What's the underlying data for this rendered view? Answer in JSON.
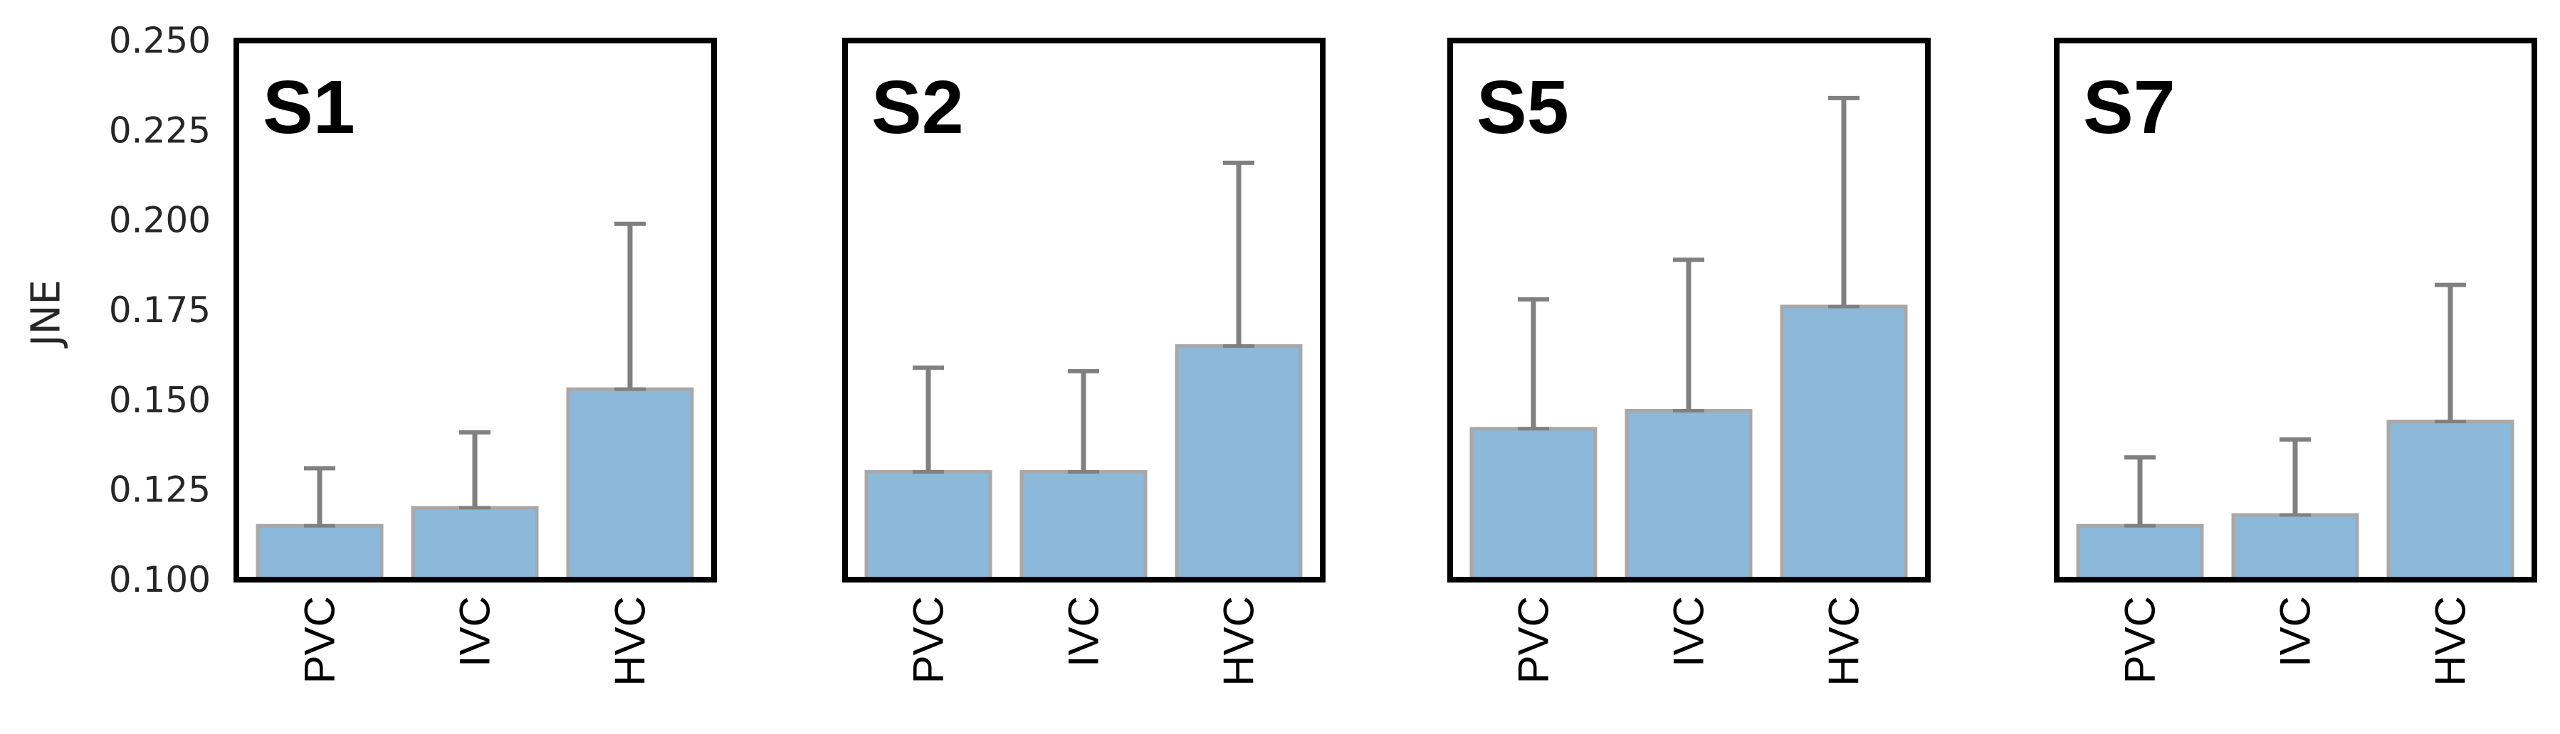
{
  "colors": {
    "bar_fill": "#8cb8d9",
    "bar_edge": "#a8a8a8",
    "error_bar": "#808080",
    "frame": "#000000"
  },
  "chart_data": {
    "type": "bar",
    "ylabel": "JNE",
    "ylim": [
      0.1,
      0.25
    ],
    "yticks": [
      "0.100",
      "0.125",
      "0.150",
      "0.175",
      "0.200",
      "0.225",
      "0.250"
    ],
    "grid": false,
    "shared_y": true,
    "error_bars": true,
    "panels": [
      {
        "title": "S1",
        "categories": [
          "PVC",
          "IVC",
          "HVC"
        ],
        "values": [
          0.115,
          0.12,
          0.153
        ],
        "error_upper": [
          0.131,
          0.141,
          0.199
        ]
      },
      {
        "title": "S2",
        "categories": [
          "PVC",
          "IVC",
          "HVC"
        ],
        "values": [
          0.13,
          0.13,
          0.165
        ],
        "error_upper": [
          0.159,
          0.158,
          0.216
        ]
      },
      {
        "title": "S5",
        "categories": [
          "PVC",
          "IVC",
          "HVC"
        ],
        "values": [
          0.142,
          0.147,
          0.176
        ],
        "error_upper": [
          0.178,
          0.189,
          0.234
        ]
      },
      {
        "title": "S7",
        "categories": [
          "PVC",
          "IVC",
          "HVC"
        ],
        "values": [
          0.115,
          0.118,
          0.144
        ],
        "error_upper": [
          0.134,
          0.139,
          0.182
        ]
      }
    ]
  }
}
